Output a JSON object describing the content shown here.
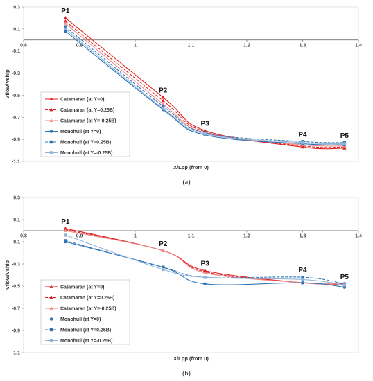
{
  "chart_data": [
    {
      "type": "line",
      "caption": "(a)",
      "xlabel": "X/Lpp (from 0)",
      "ylabel": "Vflow/Vship",
      "xlim": [
        0.8,
        1.4
      ],
      "ylim": [
        -1.1,
        0.3
      ],
      "xticks": [
        0.8,
        0.9,
        1,
        1.1,
        1.2,
        1.3,
        1.4
      ],
      "xtick_labels": [
        "0.8",
        "0.9",
        "1",
        "1.1",
        "1.2",
        "1.3",
        "1.4"
      ],
      "yticks": [
        0.3,
        0.1,
        -0.1,
        -0.3,
        -0.5,
        -0.7,
        -0.9,
        -1.1
      ],
      "ytick_labels": [
        "0.3",
        "0.1",
        "-0.1",
        "-0.3",
        "-0.5",
        "-0.7",
        "-0.9",
        "-1.1"
      ],
      "x": [
        0.875,
        1.05,
        1.125,
        1.3,
        1.375
      ],
      "point_labels": [
        "P1",
        "P2",
        "P3",
        "P4",
        "P5"
      ],
      "legend_position": "left",
      "series": [
        {
          "name": "Catamaran (at Y=0)",
          "color": "#e02020",
          "dash": "solid",
          "marker": "tri",
          "values": [
            0.2,
            -0.52,
            -0.82,
            -0.97,
            -0.98
          ]
        },
        {
          "name": "Catamaran (at Y=0.25B)",
          "color": "#e02020",
          "dash": "dashed",
          "marker": "tri",
          "values": [
            0.17,
            -0.55,
            -0.83,
            -0.96,
            -0.97
          ]
        },
        {
          "name": "Catamaran (at Y=-0.25B)",
          "color": "#f08a8a",
          "dash": "solid",
          "marker": "tri",
          "values": [
            0.15,
            -0.58,
            -0.84,
            -0.95,
            -0.96
          ]
        },
        {
          "name": "Monohull (at Y=0)",
          "color": "#2e75b6",
          "dash": "solid",
          "marker": "circle",
          "values": [
            0.08,
            -0.63,
            -0.86,
            -0.94,
            -0.95
          ]
        },
        {
          "name": "Monohull (at Y=0.25B)",
          "color": "#2e75b6",
          "dash": "dashed",
          "marker": "square",
          "values": [
            0.12,
            -0.6,
            -0.84,
            -0.92,
            -0.93
          ]
        },
        {
          "name": "Monohull (at Y=-0.25B)",
          "color": "#8fb4d9",
          "dash": "solid",
          "marker": "square",
          "values": [
            0.1,
            -0.62,
            -0.85,
            -0.93,
            -0.94
          ]
        }
      ]
    },
    {
      "type": "line",
      "caption": "(b)",
      "xlabel": "X/Lpp (from 0)",
      "ylabel": "Vflow/Vship",
      "xlim": [
        0.8,
        1.4
      ],
      "ylim": [
        -1.1,
        0.3
      ],
      "xticks": [
        0.8,
        0.9,
        1,
        1.1,
        1.2,
        1.3,
        1.4
      ],
      "xtick_labels": [
        "0.8",
        "0.9",
        "1",
        "1.1",
        "1.2",
        "1.3",
        "1.4"
      ],
      "yticks": [
        0.3,
        0.1,
        -0.1,
        -0.3,
        -0.5,
        -0.7,
        -0.9,
        -1.1
      ],
      "ytick_labels": [
        "0.3",
        "0.1",
        "-0.1",
        "-0.3",
        "-0.5",
        "-0.7",
        "-0.9",
        "-1.1"
      ],
      "x": [
        0.875,
        1.05,
        1.125,
        1.3,
        1.375
      ],
      "point_labels": [
        "P1",
        "P2",
        "P3",
        "P4",
        "P5"
      ],
      "legend_position": "left",
      "series": [
        {
          "name": "Catamaran (at Y=0)",
          "color": "#e02020",
          "dash": "solid",
          "marker": "tri",
          "values": [
            0.02,
            -0.18,
            -0.36,
            -0.47,
            -0.48
          ]
        },
        {
          "name": "Catamaran (at Y=0.25B)",
          "color": "#e02020",
          "dash": "dashed",
          "marker": "tri",
          "values": [
            0.01,
            -0.18,
            -0.37,
            -0.47,
            -0.48
          ]
        },
        {
          "name": "Catamaran (at Y=-0.25B)",
          "color": "#f08a8a",
          "dash": "solid",
          "marker": "tri",
          "values": [
            0.0,
            -0.18,
            -0.38,
            -0.47,
            -0.49
          ]
        },
        {
          "name": "Monohull (at Y=0)",
          "color": "#2e75b6",
          "dash": "solid",
          "marker": "circle",
          "values": [
            -0.1,
            -0.33,
            -0.48,
            -0.47,
            -0.51
          ]
        },
        {
          "name": "Monohull (at Y=0.25B)",
          "color": "#2e75b6",
          "dash": "dashed",
          "marker": "square",
          "values": [
            -0.09,
            -0.33,
            -0.42,
            -0.42,
            -0.48
          ]
        },
        {
          "name": "Monohull (at Y=-0.25B)",
          "color": "#8fb4d9",
          "dash": "solid",
          "marker": "square",
          "values": [
            -0.04,
            -0.35,
            -0.42,
            -0.44,
            -0.49
          ]
        }
      ]
    }
  ]
}
